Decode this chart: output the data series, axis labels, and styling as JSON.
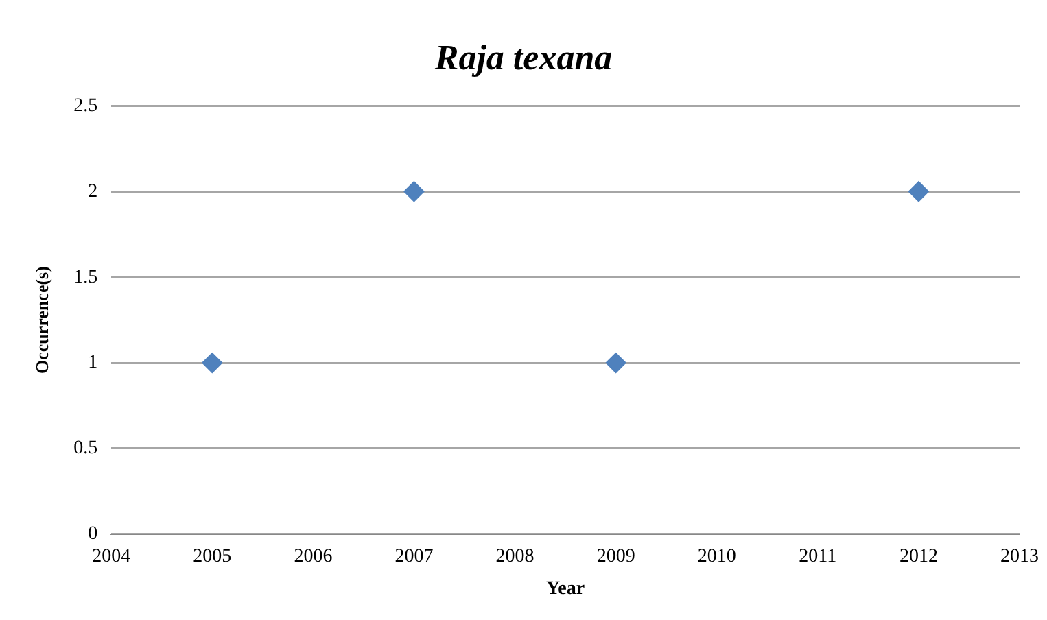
{
  "chart_data": {
    "type": "scatter",
    "title": "Raja texana",
    "xlabel": "Year",
    "ylabel": "Occurrence(s)",
    "x": [
      2005,
      2007,
      2009,
      2012
    ],
    "series": [
      {
        "color": "#4f81bd",
        "values": [
          1,
          2,
          1,
          2
        ]
      }
    ],
    "xlim": [
      2004,
      2013
    ],
    "xticks": [
      2004,
      2005,
      2006,
      2007,
      2008,
      2009,
      2010,
      2011,
      2012,
      2013
    ],
    "ylim": [
      0,
      2.5
    ],
    "yticks": [
      0,
      0.5,
      1,
      1.5,
      2,
      2.5
    ],
    "grid": "y",
    "legend": false,
    "marker": "diamond"
  }
}
